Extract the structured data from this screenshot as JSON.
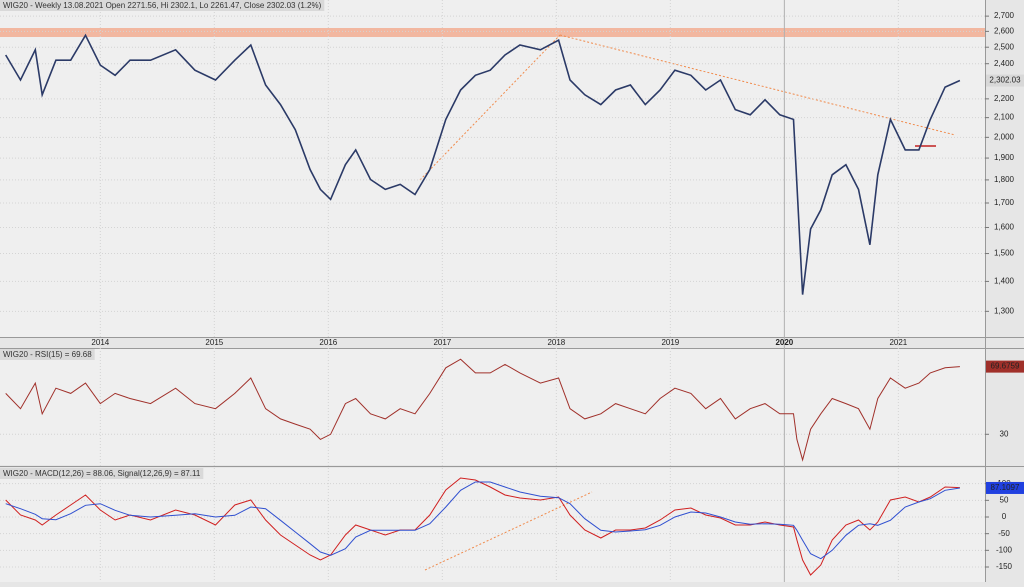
{
  "chart_data": [
    {
      "type": "line",
      "title": "WIG20 - Weekly 13.08.2021 Open 2271.56, Hi 2302.1, Lo 2261.47, Close 2302.03 (1.2%)",
      "log_scale": true,
      "grid": true,
      "xlim": [
        2013.12,
        2021.76
      ],
      "xticks": [
        2014,
        2015,
        2016,
        2017,
        2018,
        2019,
        2020,
        2021
      ],
      "ylim": [
        1220,
        2810
      ],
      "yticks": [
        {
          "value": 1300,
          "label": "1,300"
        },
        {
          "value": 1400,
          "label": "1,400"
        },
        {
          "value": 1500,
          "label": "1,500"
        },
        {
          "value": 1600,
          "label": "1,600"
        },
        {
          "value": 1700,
          "label": "1,700"
        },
        {
          "value": 1800,
          "label": "1,800"
        },
        {
          "value": 1900,
          "label": "1,900"
        },
        {
          "value": 2000,
          "label": "2,000"
        },
        {
          "value": 2100,
          "label": "2,100"
        },
        {
          "value": 2200,
          "label": "2,200"
        },
        {
          "value": 2400,
          "label": "2,400"
        },
        {
          "value": 2500,
          "label": "2,500"
        },
        {
          "value": 2600,
          "label": "2,600"
        },
        {
          "value": 2700,
          "label": "2,700"
        }
      ],
      "x": [
        2013.17,
        2013.3,
        2013.43,
        2013.49,
        2013.61,
        2013.74,
        2013.87,
        2014.0,
        2014.13,
        2014.26,
        2014.44,
        2014.66,
        2014.83,
        2015.01,
        2015.18,
        2015.32,
        2015.45,
        2015.58,
        2015.71,
        2015.84,
        2015.93,
        2016.02,
        2016.15,
        2016.24,
        2016.37,
        2016.5,
        2016.63,
        2016.76,
        2016.89,
        2017.03,
        2017.16,
        2017.29,
        2017.42,
        2017.55,
        2017.68,
        2017.86,
        2018.02,
        2018.12,
        2018.25,
        2018.39,
        2018.52,
        2018.65,
        2018.78,
        2018.91,
        2019.04,
        2019.18,
        2019.31,
        2019.44,
        2019.57,
        2019.7,
        2019.83,
        2019.96,
        2020.08,
        2020.11,
        2020.16,
        2020.23,
        2020.32,
        2020.42,
        2020.54,
        2020.65,
        2020.75,
        2020.82,
        2020.93,
        2021.06,
        2021.18,
        2021.28,
        2021.41,
        2021.54
      ],
      "series": [
        {
          "name": "WIG20",
          "color": "#2b3a67",
          "values": [
            2452,
            2305,
            2484,
            2222,
            2421,
            2421,
            2575,
            2392,
            2332,
            2421,
            2421,
            2484,
            2362,
            2305,
            2421,
            2514,
            2277,
            2169,
            2038,
            1847,
            1758,
            1715,
            1869,
            1939,
            1802,
            1758,
            1780,
            1736,
            1847,
            2091,
            2249,
            2332,
            2362,
            2452,
            2514,
            2484,
            2544,
            2305,
            2222,
            2169,
            2249,
            2277,
            2169,
            2249,
            2362,
            2332,
            2249,
            2305,
            2142,
            2115,
            2195,
            2115,
            2091,
            1780,
            1355,
            1594,
            1671,
            1823,
            1869,
            1758,
            1533,
            1823,
            2091,
            1939,
            1939,
            2091,
            2265,
            2302.03
          ],
          "value_labels": [
            null,
            null,
            null,
            null,
            null,
            null,
            null,
            null,
            null,
            null,
            null,
            null,
            null,
            null,
            null,
            null,
            null,
            null,
            null,
            null,
            null,
            null,
            null,
            null,
            null,
            null,
            null,
            null,
            null,
            null,
            null,
            null,
            null,
            null,
            null,
            null,
            null,
            null,
            null,
            null,
            null,
            null,
            null,
            null,
            null,
            null,
            null,
            null,
            null,
            null,
            null,
            null,
            null,
            null,
            null,
            null,
            null,
            null,
            null,
            null,
            null,
            null,
            null,
            null,
            null,
            null,
            null,
            "2,302.03"
          ],
          "label_color": "#d8d8d8"
        }
      ]
    },
    {
      "type": "line",
      "title": "WIG20 - RSI(15) = 69.68",
      "grid": true,
      "xlim": [
        2013.12,
        2021.76
      ],
      "ylim": [
        12,
        80
      ],
      "yticks": [
        30
      ],
      "x": [
        2013.17,
        2013.3,
        2013.43,
        2013.49,
        2013.61,
        2013.74,
        2013.87,
        2014.0,
        2014.13,
        2014.26,
        2014.44,
        2014.66,
        2014.83,
        2015.01,
        2015.18,
        2015.32,
        2015.45,
        2015.58,
        2015.71,
        2015.84,
        2015.93,
        2016.02,
        2016.15,
        2016.24,
        2016.37,
        2016.5,
        2016.63,
        2016.76,
        2016.89,
        2017.03,
        2017.16,
        2017.29,
        2017.42,
        2017.55,
        2017.68,
        2017.86,
        2018.02,
        2018.12,
        2018.25,
        2018.39,
        2018.52,
        2018.65,
        2018.78,
        2018.91,
        2019.04,
        2019.18,
        2019.31,
        2019.44,
        2019.57,
        2019.7,
        2019.83,
        2019.96,
        2020.08,
        2020.11,
        2020.16,
        2020.23,
        2020.32,
        2020.42,
        2020.54,
        2020.65,
        2020.75,
        2020.82,
        2020.93,
        2021.06,
        2021.18,
        2021.28,
        2021.41,
        2021.54
      ],
      "series": [
        {
          "name": "RSI(15)",
          "color": "#a0302a",
          "values": [
            54,
            45,
            60,
            42,
            57,
            54,
            60,
            48,
            54,
            51,
            48,
            57,
            48,
            45,
            54,
            63,
            45,
            39,
            36,
            33,
            27,
            30,
            48,
            51,
            42,
            39,
            45,
            42,
            54,
            69,
            74,
            66,
            66,
            71,
            66,
            60,
            63,
            45,
            39,
            42,
            48,
            45,
            42,
            51,
            57,
            54,
            45,
            51,
            39,
            45,
            48,
            42,
            42,
            27,
            15,
            33,
            42,
            51,
            48,
            45,
            33,
            51,
            63,
            57,
            60,
            66,
            69,
            69.6759
          ],
          "value_labels": [
            null,
            null,
            null,
            null,
            null,
            null,
            null,
            null,
            null,
            null,
            null,
            null,
            null,
            null,
            null,
            null,
            null,
            null,
            null,
            null,
            null,
            null,
            null,
            null,
            null,
            null,
            null,
            null,
            null,
            null,
            null,
            null,
            null,
            null,
            null,
            null,
            null,
            null,
            null,
            null,
            null,
            null,
            null,
            null,
            null,
            null,
            null,
            null,
            null,
            null,
            null,
            null,
            null,
            null,
            null,
            null,
            null,
            null,
            null,
            null,
            null,
            null,
            null,
            null,
            null,
            null,
            null,
            "69.6759"
          ],
          "label_color": "#a0302a"
        }
      ]
    },
    {
      "type": "line",
      "title": "WIG20 - MACD(12,26) = 88.06, Signal(12,26,9) = 87.11",
      "grid": true,
      "xlim": [
        2013.12,
        2021.76
      ],
      "ylim": [
        -195,
        147
      ],
      "yticks": [
        100,
        50,
        0,
        -50,
        -100,
        -150
      ],
      "x": [
        2013.17,
        2013.3,
        2013.43,
        2013.49,
        2013.61,
        2013.74,
        2013.87,
        2014.0,
        2014.13,
        2014.26,
        2014.44,
        2014.66,
        2014.83,
        2015.01,
        2015.18,
        2015.32,
        2015.45,
        2015.58,
        2015.71,
        2015.84,
        2015.93,
        2016.02,
        2016.15,
        2016.24,
        2016.37,
        2016.5,
        2016.63,
        2016.76,
        2016.89,
        2017.03,
        2017.16,
        2017.29,
        2017.42,
        2017.55,
        2017.68,
        2017.86,
        2018.02,
        2018.12,
        2018.25,
        2018.39,
        2018.52,
        2018.65,
        2018.78,
        2018.91,
        2019.04,
        2019.18,
        2019.31,
        2019.44,
        2019.57,
        2019.7,
        2019.83,
        2019.96,
        2020.08,
        2020.11,
        2020.16,
        2020.23,
        2020.32,
        2020.42,
        2020.54,
        2020.65,
        2020.75,
        2020.82,
        2020.93,
        2021.06,
        2021.18,
        2021.28,
        2021.41,
        2021.54
      ],
      "series": [
        {
          "name": "MACD(12,26)",
          "color": "#d02020",
          "values": [
            51,
            6,
            -9,
            -24,
            6,
            36,
            66,
            21,
            -9,
            6,
            -9,
            21,
            6,
            -24,
            36,
            51,
            -9,
            -54,
            -84,
            -114,
            -129,
            -114,
            -54,
            -24,
            -39,
            -54,
            -39,
            -39,
            6,
            81,
            117,
            111,
            90,
            66,
            57,
            51,
            60,
            6,
            -39,
            -63,
            -39,
            -39,
            -33,
            -9,
            21,
            27,
            6,
            -3,
            -24,
            -24,
            -15,
            -24,
            -30,
            -69,
            -129,
            -174,
            -144,
            -69,
            -24,
            -9,
            -39,
            -15,
            51,
            60,
            45,
            60,
            90,
            88.06
          ]
        },
        {
          "name": "Signal(12,26,9)",
          "color": "#3050d0",
          "values": [
            40,
            25,
            8,
            -5,
            -8,
            10,
            35,
            40,
            20,
            5,
            0,
            5,
            10,
            0,
            5,
            30,
            25,
            -10,
            -45,
            -80,
            -105,
            -115,
            -95,
            -60,
            -40,
            -40,
            -40,
            -40,
            -20,
            30,
            80,
            105,
            105,
            90,
            75,
            62,
            58,
            40,
            -5,
            -40,
            -45,
            -42,
            -38,
            -25,
            0,
            15,
            12,
            0,
            -15,
            -22,
            -20,
            -22,
            -25,
            -40,
            -70,
            -110,
            -125,
            -100,
            -55,
            -25,
            -20,
            -25,
            -10,
            30,
            45,
            55,
            80,
            87.1097
          ],
          "value_labels": [
            null,
            null,
            null,
            null,
            null,
            null,
            null,
            null,
            null,
            null,
            null,
            null,
            null,
            null,
            null,
            null,
            null,
            null,
            null,
            null,
            null,
            null,
            null,
            null,
            null,
            null,
            null,
            null,
            null,
            null,
            null,
            null,
            null,
            null,
            null,
            null,
            null,
            null,
            null,
            null,
            null,
            null,
            null,
            null,
            null,
            null,
            null,
            null,
            null,
            null,
            null,
            null,
            null,
            null,
            null,
            null,
            null,
            null,
            null,
            null,
            null,
            null,
            null,
            null,
            null,
            null,
            null,
            "87.1097"
          ],
          "label_color": "#2040e0"
        }
      ]
    }
  ]
}
